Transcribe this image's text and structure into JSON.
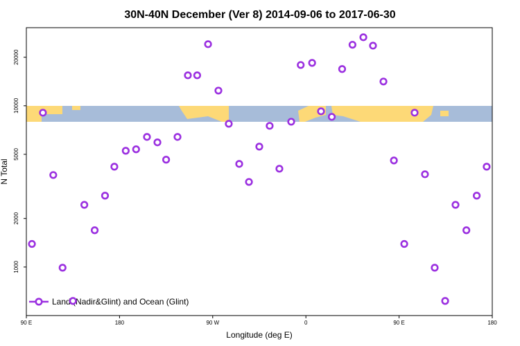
{
  "chart_data": {
    "type": "scatter",
    "title": "30N-40N December (Ver 8)   2014-09-06 to 2017-06-30",
    "x_label": "Longitude (deg E)",
    "y_label": "N Total",
    "log_y": true,
    "xlim": [
      90,
      540
    ],
    "ylim": [
      500,
      30500
    ],
    "xticks": [
      {
        "value": 90,
        "label": "90 E"
      },
      180,
      {
        "value": 270,
        "label": "90 W"
      },
      {
        "value": 360,
        "label": "0"
      },
      {
        "value": 450,
        "label": "90 E"
      },
      {
        "value": 540,
        "label": "180"
      }
    ],
    "yticks": [
      1000,
      2000,
      5000,
      10000,
      20000
    ],
    "legend_position": "bottom-left",
    "series": [
      {
        "name": "Land (Nadir&Glint) and Ocean (Glint)",
        "color": "#9b30e0",
        "x": [
          95.4,
          106,
          116,
          125,
          135,
          146,
          156,
          166,
          175,
          186,
          196,
          206.5,
          216.6,
          225,
          236,
          246,
          255,
          265.5,
          275.5,
          285.5,
          295.6,
          305,
          315,
          325,
          334.4,
          345.8,
          355,
          366,
          374.6,
          385,
          395,
          405,
          415.5,
          424.8,
          434.9,
          445,
          455,
          465,
          475,
          484.4,
          494.5,
          504.5,
          515,
          525,
          534.6
        ],
        "values": [
          1390,
          9060,
          3720,
          990,
          616,
          2430,
          1690,
          2770,
          4190,
          5260,
          5370,
          6410,
          5930,
          4630,
          6410,
          15450,
          15450,
          24100,
          12420,
          7730,
          4360,
          3370,
          5580,
          7510,
          4070,
          7960,
          17900,
          18450,
          9240,
          8540,
          16900,
          23900,
          26600,
          23600,
          14140,
          4580,
          1390,
          9060,
          3760,
          990,
          616,
          2430,
          1690,
          2770,
          4190
        ]
      }
    ]
  }
}
